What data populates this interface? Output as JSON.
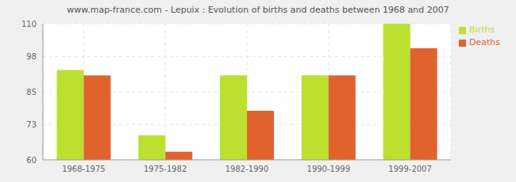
{
  "chart_data": {
    "type": "bar",
    "title": "www.map-france.com - Lepuix : Evolution of births and deaths between 1968 and 2007",
    "categories": [
      "1968-1975",
      "1975-1982",
      "1982-1990",
      "1990-1999",
      "1999-2007"
    ],
    "series": [
      {
        "name": "Births",
        "color": "#bbe02f",
        "values": [
          93,
          69,
          91,
          91,
          110
        ]
      },
      {
        "name": "Deaths",
        "color": "#e0632e",
        "values": [
          91,
          63,
          78,
          91,
          101
        ]
      }
    ],
    "ylim": [
      60,
      110
    ],
    "yticks": [
      60,
      73,
      85,
      98,
      110
    ],
    "grid": true,
    "legend": "upper right"
  }
}
